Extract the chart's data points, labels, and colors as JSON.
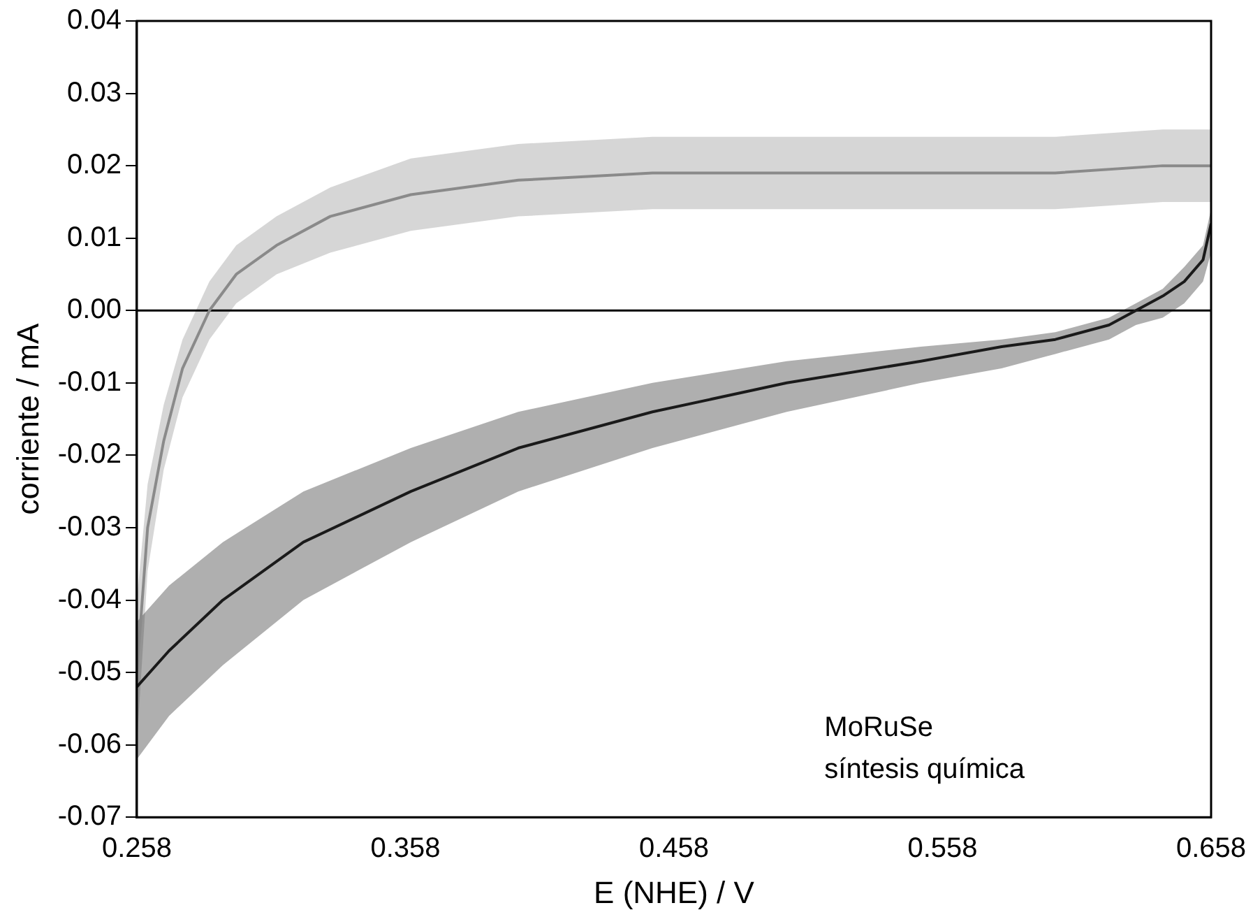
{
  "chart_data": {
    "type": "line",
    "xlabel": "E (NHE) / V",
    "ylabel": "corriente / mA",
    "xlim": [
      0.258,
      0.658
    ],
    "xticks": [
      0.258,
      0.358,
      0.458,
      0.558,
      0.658
    ],
    "ylim": [
      -0.07,
      0.04
    ],
    "yticks": [
      -0.07,
      -0.06,
      -0.05,
      -0.04,
      -0.03,
      -0.02,
      -0.01,
      {
        "value": 0,
        "label": "0.00"
      },
      0.01,
      0.02,
      0.03,
      0.04
    ],
    "grid": false,
    "legend": false,
    "marker": "none",
    "line_style": "solid",
    "series": [
      {
        "color": "#8a8a8a",
        "x": [
          0.258,
          0.262,
          0.268,
          0.275,
          0.285,
          0.295,
          0.31,
          0.33,
          0.36,
          0.4,
          0.45,
          0.5,
          0.55,
          0.6,
          0.64,
          0.658
        ],
        "values": [
          -0.05,
          -0.03,
          -0.018,
          -0.008,
          0.0,
          0.005,
          0.009,
          0.013,
          0.016,
          0.018,
          0.019,
          0.019,
          0.019,
          0.019,
          0.02,
          0.02
        ],
        "lower": [
          -0.06,
          -0.036,
          -0.022,
          -0.012,
          -0.004,
          0.001,
          0.005,
          0.008,
          0.011,
          0.013,
          0.014,
          0.014,
          0.014,
          0.014,
          0.015,
          0.015
        ],
        "upper": [
          -0.04,
          -0.024,
          -0.013,
          -0.004,
          0.004,
          0.009,
          0.013,
          0.017,
          0.021,
          0.023,
          0.024,
          0.024,
          0.024,
          0.024,
          0.025,
          0.025
        ]
      },
      {
        "color": "#1a1a1a",
        "x": [
          0.658,
          0.655,
          0.648,
          0.64,
          0.63,
          0.62,
          0.6,
          0.58,
          0.55,
          0.5,
          0.45,
          0.4,
          0.36,
          0.32,
          0.29,
          0.27,
          0.258
        ],
        "values": [
          0.012,
          0.007,
          0.004,
          0.002,
          0.0,
          -0.002,
          -0.004,
          -0.005,
          -0.007,
          -0.01,
          -0.014,
          -0.019,
          -0.025,
          -0.032,
          -0.04,
          -0.047,
          -0.052
        ],
        "lower": [
          0.008,
          0.004,
          0.001,
          -0.001,
          -0.002,
          -0.004,
          -0.006,
          -0.008,
          -0.01,
          -0.014,
          -0.019,
          -0.025,
          -0.032,
          -0.04,
          -0.049,
          -0.056,
          -0.062
        ],
        "upper": [
          0.014,
          0.009,
          0.006,
          0.003,
          0.001,
          -0.001,
          -0.003,
          -0.004,
          -0.005,
          -0.007,
          -0.01,
          -0.014,
          -0.019,
          -0.025,
          -0.032,
          -0.038,
          -0.043
        ]
      }
    ],
    "ref_lines": [
      {
        "axis": "y",
        "value": 0,
        "color": "#000000"
      }
    ],
    "annotations": [
      "MoRuSe",
      "síntesis química"
    ]
  }
}
